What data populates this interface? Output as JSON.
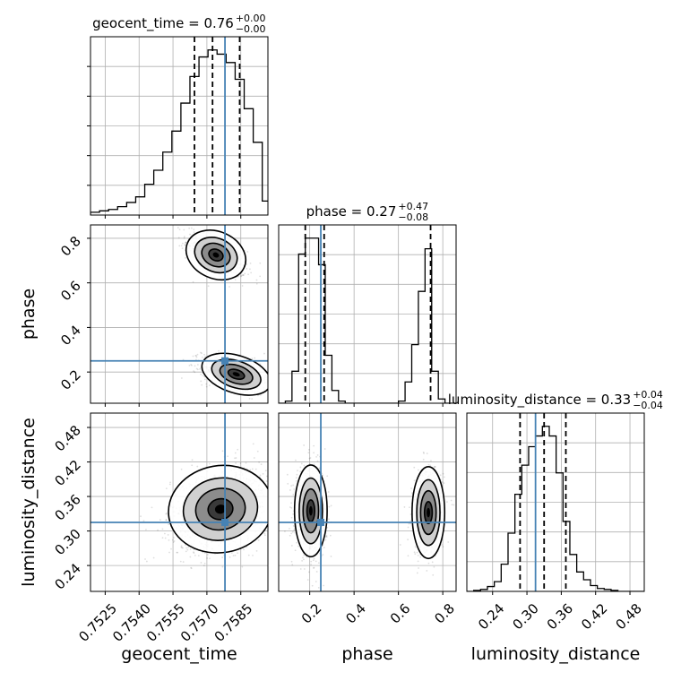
{
  "chart_data": {
    "type": "corner",
    "parameters": [
      "geocent_time",
      "phase",
      "luminosity_distance"
    ],
    "axis_labels": {
      "geocent_time": "geocent_time",
      "phase": "phase",
      "luminosity_distance": "luminosity_distance"
    },
    "ranges": {
      "geocent_time": [
        0.75185,
        0.7597
      ],
      "phase": [
        0.06,
        0.86
      ],
      "luminosity_distance": [
        0.195,
        0.505
      ]
    },
    "ticks": {
      "geocent_time": [
        "0.7525",
        "0.7540",
        "0.7555",
        "0.7570",
        "0.7585"
      ],
      "phase": [
        "0.2",
        "0.4",
        "0.6",
        "0.8"
      ],
      "luminosity_distance": [
        "0.24",
        "0.30",
        "0.36",
        "0.42",
        "0.48"
      ]
    },
    "truths": {
      "geocent_time": 0.7578,
      "phase": 0.25,
      "luminosity_distance": 0.315
    },
    "truth_color": "#4682b4",
    "titles": [
      {
        "param": "geocent_time",
        "name": "geocent_time",
        "median": "0.76",
        "plus": "+0.00",
        "minus": "−0.00"
      },
      {
        "param": "phase",
        "name": "phase",
        "median": "0.27",
        "plus": "+0.47",
        "minus": "−0.08"
      },
      {
        "param": "luminosity_distance",
        "name": "luminosity_distance",
        "median": "0.33",
        "plus": "+0.04",
        "minus": "−0.04"
      }
    ],
    "quantiles": {
      "geocent_time": [
        0.75645,
        0.75725,
        0.75845
      ],
      "phase": [
        0.18,
        0.265,
        0.745
      ],
      "luminosity_distance": [
        0.288,
        0.33,
        0.368
      ]
    },
    "histograms": {
      "geocent_time": {
        "edges": [
          0.75185,
          0.75225,
          0.75265,
          0.75305,
          0.75345,
          0.75385,
          0.75425,
          0.75465,
          0.75505,
          0.75545,
          0.75585,
          0.75625,
          0.75665,
          0.75705,
          0.75745,
          0.75785,
          0.75825,
          0.75865,
          0.75905,
          0.75945,
          0.7597
        ],
        "counts": [
          2,
          3,
          4,
          6,
          9,
          13,
          22,
          32,
          45,
          60,
          80,
          99,
          113,
          118,
          115,
          109,
          97,
          76,
          52,
          10
        ]
      },
      "phase": {
        "edges": [
          0.06,
          0.09,
          0.12,
          0.15,
          0.18,
          0.21,
          0.24,
          0.27,
          0.3,
          0.33,
          0.36,
          0.39,
          0.42,
          0.45,
          0.48,
          0.51,
          0.54,
          0.57,
          0.6,
          0.63,
          0.66,
          0.69,
          0.72,
          0.75,
          0.78,
          0.81,
          0.84,
          0.86
        ],
        "counts": [
          0,
          2,
          30,
          140,
          155,
          155,
          130,
          45,
          12,
          2,
          0,
          0,
          0,
          0,
          0,
          0,
          0,
          0,
          2,
          20,
          55,
          105,
          145,
          30,
          4,
          0,
          0
        ]
      },
      "luminosity_distance": {
        "edges": [
          0.195,
          0.207,
          0.219,
          0.231,
          0.243,
          0.255,
          0.267,
          0.279,
          0.291,
          0.303,
          0.315,
          0.327,
          0.339,
          0.351,
          0.363,
          0.375,
          0.387,
          0.399,
          0.411,
          0.423,
          0.435,
          0.447,
          0.459,
          0.471,
          0.483,
          0.495,
          0.505
        ],
        "counts": [
          0,
          1,
          2,
          5,
          10,
          28,
          60,
          100,
          130,
          149,
          160,
          170,
          160,
          122,
          72,
          38,
          20,
          12,
          6,
          3,
          2,
          1,
          0,
          0,
          0,
          0
        ]
      }
    },
    "modes": {
      "geocent_time|phase": [
        {
          "x": 0.7574,
          "y": 0.725,
          "sx": 0.00065,
          "sy": 0.05,
          "rho": -0.6,
          "w": 0.45
        },
        {
          "x": 0.7583,
          "y": 0.19,
          "sx": 0.00075,
          "sy": 0.04,
          "rho": -0.45,
          "w": 0.55
        }
      ],
      "geocent_time|luminosity_distance": [
        {
          "x": 0.7576,
          "y": 0.338,
          "sx": 0.0011,
          "sy": 0.036,
          "rho": 0.25,
          "w": 1.0
        }
      ],
      "phase|luminosity_distance": [
        {
          "x": 0.205,
          "y": 0.335,
          "sx": 0.035,
          "sy": 0.038,
          "rho": 0.0,
          "w": 0.55
        },
        {
          "x": 0.735,
          "y": 0.332,
          "sx": 0.035,
          "sy": 0.038,
          "rho": 0.0,
          "w": 0.45
        }
      ]
    },
    "grid": true,
    "legend": "none"
  }
}
